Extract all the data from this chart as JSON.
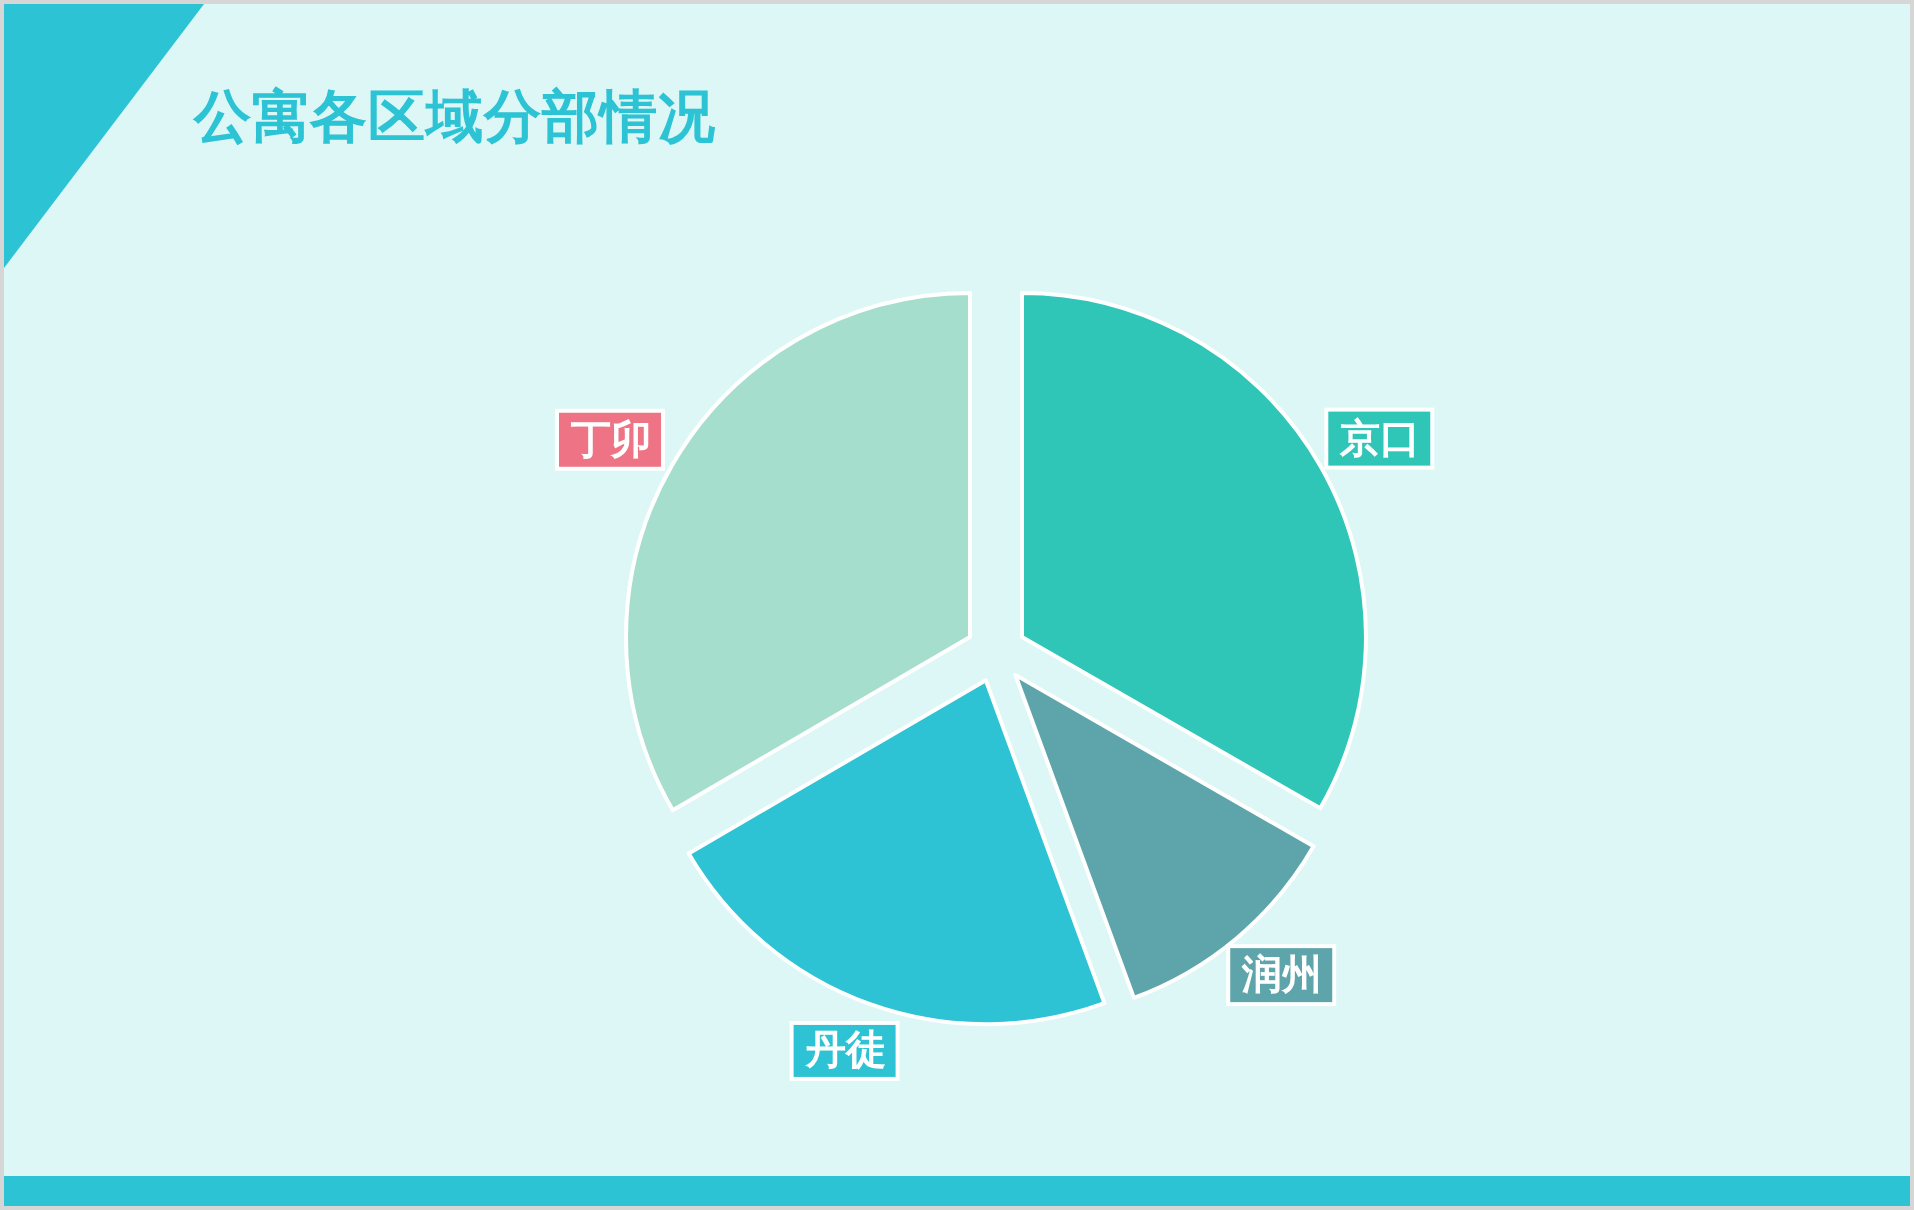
{
  "chart_data": {
    "type": "pie",
    "title": "公寓各区域分部情况",
    "categories": [
      "京口",
      "润州",
      "丹徒",
      "丁卯"
    ],
    "values": [
      33.3,
      11.1,
      22.2,
      33.4
    ],
    "colors": [
      "#2fc5b7",
      "#5ea5ab",
      "#2dc3d4",
      "#a6dece"
    ]
  }
}
